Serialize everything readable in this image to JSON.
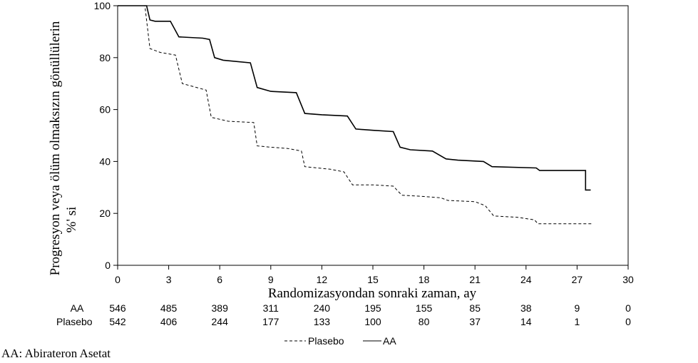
{
  "chart_data": {
    "type": "line",
    "title": "",
    "xlabel": "Randomizasyondan sonraki zaman, ay",
    "ylabel_lines": [
      "Progresyon veya ölüm olmaksızın gönüllülerin",
      "%' si"
    ],
    "xlim": [
      0,
      30
    ],
    "ylim": [
      0,
      100
    ],
    "x_ticks": [
      "0",
      "3",
      "6",
      "9",
      "12",
      "15",
      "18",
      "21",
      "24",
      "27",
      "30"
    ],
    "y_ticks": [
      "0",
      "20",
      "40",
      "60",
      "80",
      "100"
    ],
    "grid": false,
    "series": [
      {
        "name": "AA",
        "style": "solid",
        "points": [
          [
            0,
            100
          ],
          [
            1.7,
            100
          ],
          [
            1.9,
            94.5
          ],
          [
            2.2,
            94
          ],
          [
            3.1,
            94
          ],
          [
            3.6,
            88
          ],
          [
            5,
            87.5
          ],
          [
            5.4,
            87
          ],
          [
            5.7,
            80
          ],
          [
            6.2,
            79
          ],
          [
            7.8,
            78
          ],
          [
            8.2,
            68.5
          ],
          [
            9,
            67
          ],
          [
            10.5,
            66.5
          ],
          [
            11,
            58.5
          ],
          [
            12,
            58
          ],
          [
            13.5,
            57.5
          ],
          [
            14,
            52.5
          ],
          [
            15,
            52
          ],
          [
            16.2,
            51.5
          ],
          [
            16.6,
            45.5
          ],
          [
            17.2,
            44.5
          ],
          [
            18.5,
            44
          ],
          [
            19.3,
            41
          ],
          [
            20,
            40.5
          ],
          [
            21.5,
            40
          ],
          [
            22,
            38
          ],
          [
            24.6,
            37.5
          ],
          [
            24.8,
            36.5
          ],
          [
            27.5,
            36.5
          ],
          [
            27.5,
            29
          ],
          [
            27.8,
            29
          ]
        ]
      },
      {
        "name": "Plasebo",
        "style": "dashed",
        "points": [
          [
            0,
            100
          ],
          [
            1.6,
            100
          ],
          [
            1.9,
            83.5
          ],
          [
            2.5,
            82
          ],
          [
            3.4,
            81
          ],
          [
            3.8,
            70
          ],
          [
            5.2,
            67.5
          ],
          [
            5.5,
            57
          ],
          [
            6.5,
            55.5
          ],
          [
            8,
            55
          ],
          [
            8.2,
            46
          ],
          [
            9,
            45.5
          ],
          [
            10,
            45
          ],
          [
            10.8,
            44
          ],
          [
            11,
            38
          ],
          [
            12.5,
            37
          ],
          [
            13.3,
            36
          ],
          [
            13.8,
            31
          ],
          [
            15,
            31
          ],
          [
            16.2,
            30.5
          ],
          [
            16.7,
            27
          ],
          [
            18,
            26.5
          ],
          [
            19,
            26
          ],
          [
            19.4,
            25
          ],
          [
            21,
            24.5
          ],
          [
            21.6,
            23
          ],
          [
            22.1,
            19
          ],
          [
            23.5,
            18.5
          ],
          [
            24.5,
            17.5
          ],
          [
            24.7,
            16
          ],
          [
            26,
            16
          ],
          [
            27.9,
            16
          ]
        ]
      }
    ],
    "risk_table": {
      "x": [
        0,
        3,
        6,
        9,
        12,
        15,
        18,
        21,
        24,
        27,
        30
      ],
      "rows": [
        {
          "label": "AA",
          "values": [
            "546",
            "485",
            "389",
            "311",
            "240",
            "195",
            "155",
            "85",
            "38",
            "9",
            "0"
          ]
        },
        {
          "label": "Plasebo",
          "values": [
            "542",
            "406",
            "244",
            "177",
            "133",
            "100",
            "80",
            "37",
            "14",
            "1",
            "0"
          ]
        }
      ]
    },
    "legend": {
      "placement": "bottom-center",
      "items": [
        {
          "label": "Plasebo",
          "style": "dashed"
        },
        {
          "label": "AA",
          "style": "solid"
        }
      ]
    }
  },
  "footnote": "AA: Abirateron Asetat"
}
